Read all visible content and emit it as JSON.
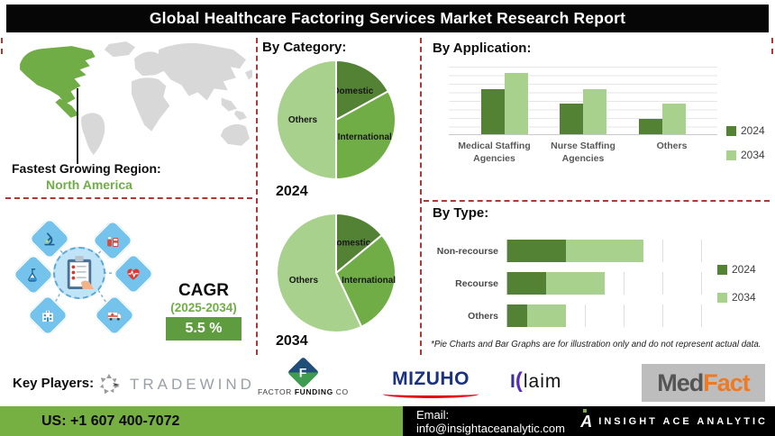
{
  "title": "Global Healthcare Factoring Services Market Research Report",
  "map": {
    "caption_label": "Fastest Growing Region:",
    "caption_value": "North America",
    "highlight_region": "North America"
  },
  "cagr": {
    "label": "CAGR",
    "period": "(2025-2034)",
    "value": "5.5 %"
  },
  "sections": {
    "category_heading": "By Category:",
    "application_heading": "By Application:",
    "type_heading": "By Type:"
  },
  "chart_data": [
    {
      "id": "pie2024",
      "type": "pie",
      "title": "2024",
      "labels": [
        "Domestic",
        "International",
        "Others"
      ],
      "values": [
        17,
        33,
        50
      ],
      "colors": [
        "#548235",
        "#70ad47",
        "#a9d18e"
      ]
    },
    {
      "id": "pie2034",
      "type": "pie",
      "title": "2034",
      "labels": [
        "Domestic",
        "International",
        "Others"
      ],
      "values": [
        14,
        29,
        57
      ],
      "colors": [
        "#548235",
        "#70ad47",
        "#a9d18e"
      ]
    },
    {
      "id": "application",
      "type": "bar",
      "orientation": "vertical",
      "title": "By Application:",
      "categories": [
        "Medical Staffing Agencies",
        "Nurse Staffing Agencies",
        "Others"
      ],
      "series": [
        {
          "name": "2024",
          "color": "#548235",
          "values": [
            66,
            45,
            22
          ]
        },
        {
          "name": "2034",
          "color": "#a9d18e",
          "values": [
            90,
            66,
            45
          ]
        }
      ],
      "ylim": [
        0,
        100
      ],
      "grid": "horizontal",
      "legend_position": "right"
    },
    {
      "id": "type",
      "type": "bar",
      "orientation": "horizontal",
      "stacked": true,
      "title": "By Type:",
      "categories": [
        "Non-recourse",
        "Recourse",
        "Others"
      ],
      "series": [
        {
          "name": "2024",
          "color": "#548235",
          "values": [
            1.5,
            1.0,
            0.5
          ]
        },
        {
          "name": "2034",
          "color": "#a9d18e",
          "values": [
            2.0,
            1.5,
            1.0
          ]
        }
      ],
      "xlim": [
        0,
        5
      ],
      "grid": "vertical",
      "legend_position": "right"
    }
  ],
  "footnote": "*Pie Charts and Bar Graphs are for illustration only and do not represent actual data.",
  "key_players": {
    "label": "Key Players:",
    "tradewind": "TRADEWIND",
    "factor_funding": {
      "monogram": "F",
      "word1": "FACTOR",
      "word2": "FUNDING",
      "word3": "CO"
    },
    "mizuho": "MIZUHO",
    "klaim": {
      "stem": "I",
      "paren": "(",
      "rest": "laim"
    },
    "medfact": {
      "part1": "Med",
      "part2": "Fact"
    }
  },
  "icons": {
    "cluster": [
      "microscope-icon",
      "medicine-icon",
      "flask-icon",
      "heart-pulse-icon",
      "hospital-icon",
      "ambulance-icon"
    ],
    "center": "clipboard-icon",
    "tradewind": "arrow-swirl-icon",
    "insight_ace": "insight-ace-a-icon"
  },
  "footer": {
    "phone": "US: +1 607 400-7072",
    "email": "Email: info@insightaceanalytic.com",
    "brand": "INSIGHT ACE ANALYTIC"
  },
  "colors": {
    "green_dark": "#548235",
    "green": "#70ad47",
    "green_light": "#a9d18e",
    "divider_red": "#ab3a32",
    "footer_green": "#76b043",
    "map_gray": "#d8d8d8",
    "cagr_box": "#5f9c3f"
  }
}
